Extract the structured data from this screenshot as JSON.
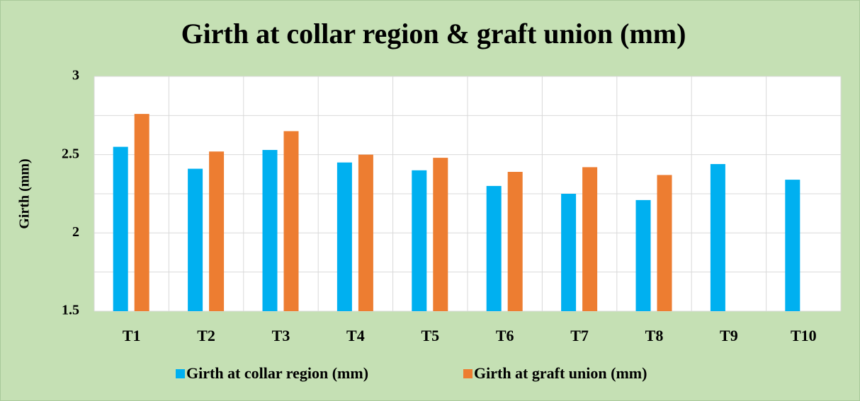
{
  "chart_data": {
    "type": "bar",
    "title": "Girth at collar region & graft union (mm)",
    "y_label": "Girth (mm)",
    "categories": [
      "T1",
      "T2",
      "T3",
      "T4",
      "T5",
      "T6",
      "T7",
      "T8",
      "T9",
      "T10"
    ],
    "series": [
      {
        "name": "Girth at collar region (mm)",
        "color": "#00b0f0",
        "values": [
          2.55,
          2.41,
          2.53,
          2.45,
          2.4,
          2.3,
          2.25,
          2.21,
          2.44,
          2.34
        ]
      },
      {
        "name": "Girth at graft union (mm)",
        "color": "#ed7d31",
        "values": [
          2.76,
          2.52,
          2.65,
          2.5,
          2.48,
          2.39,
          2.42,
          2.37,
          null,
          null
        ]
      }
    ],
    "ylim": [
      1.5,
      3
    ],
    "yticks": [
      1.5,
      2,
      2.5,
      3
    ],
    "grid": true,
    "ygrid": [
      1.5,
      1.75,
      2,
      2.25,
      2.5,
      2.75,
      3
    ],
    "legend": "bottom"
  }
}
